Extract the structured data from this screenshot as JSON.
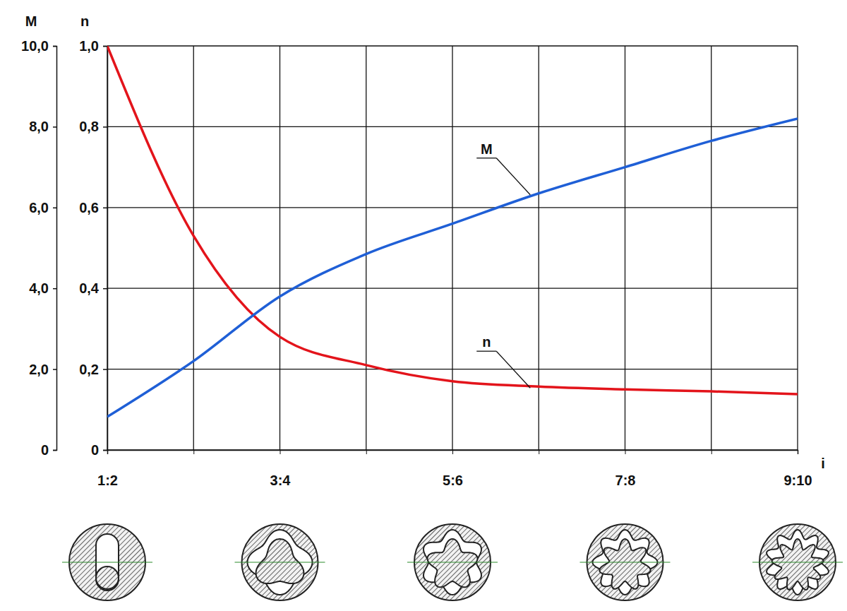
{
  "chart_data": {
    "type": "line",
    "x_label": "i",
    "y_label": "n",
    "y2_label": "M",
    "categories": [
      "1:2",
      null,
      "3:4",
      null,
      "5:6",
      null,
      "7:8",
      null,
      "9:10"
    ],
    "series": [
      {
        "name": "n",
        "color": "#e3141b",
        "values": [
          1.0,
          0.53,
          0.28,
          0.21,
          0.17,
          0.157,
          0.15,
          0.145,
          0.138
        ]
      },
      {
        "name": "M",
        "color": "#1f5fd6",
        "axis": "y2",
        "values": [
          0.82,
          2.2,
          3.8,
          4.85,
          5.6,
          6.35,
          7.0,
          7.65,
          8.2
        ]
      }
    ],
    "ylim": [
      0,
      1
    ],
    "yticks": [
      0,
      {
        "value": 0.2,
        "label": "0,2"
      },
      {
        "value": 0.4,
        "label": "0,4"
      },
      {
        "value": 0.6,
        "label": "0,6"
      },
      {
        "value": 0.8,
        "label": "0,8"
      },
      {
        "value": 1,
        "label": "1,0"
      }
    ],
    "y2lim": [
      0,
      10
    ],
    "y2ticks": [
      0,
      {
        "value": 2,
        "label": "2,0"
      },
      {
        "value": 4,
        "label": "4,0"
      },
      {
        "value": 6,
        "label": "6,0"
      },
      {
        "value": 8,
        "label": "8,0"
      },
      {
        "value": 10,
        "label": "10,0"
      }
    ],
    "grid": true
  }
}
